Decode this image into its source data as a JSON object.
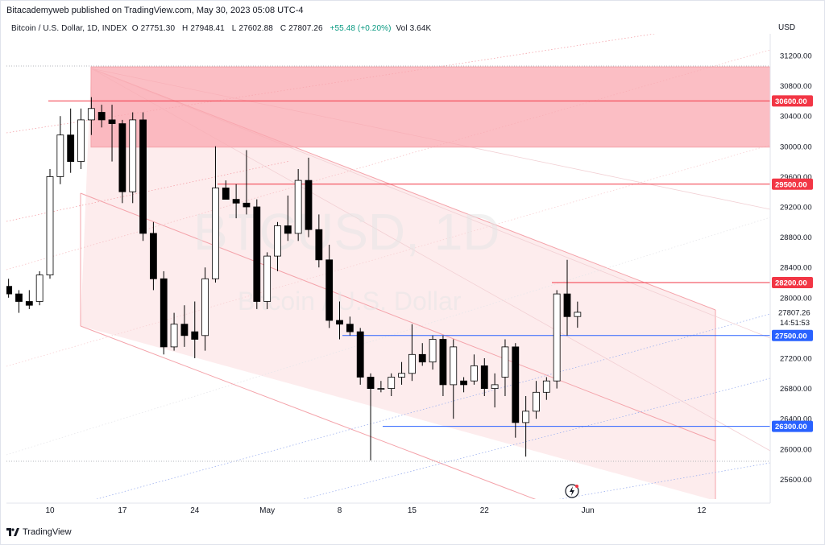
{
  "header": {
    "publisher_line": "Bitacademyweb published on TradingView.com, May 30, 2023 05:08 UTC-4",
    "symbol_name": "Bitcoin / U.S. Dollar, 1D, INDEX",
    "open_label": "O",
    "open_value": "27751.30",
    "high_label": "H",
    "high_value": "27948.41",
    "low_label": "L",
    "low_value": "27602.88",
    "close_label": "C",
    "close_value": "27807.26",
    "change_value": "+55.48 (+0.20%)",
    "volume_label": "Vol",
    "volume_value": "3.64K",
    "currency": "USD"
  },
  "footer": {
    "brand": "TradingView"
  },
  "watermark": {
    "line1": "BTCUSD, 1D",
    "line2": "Bitcoin / U.S. Dollar"
  },
  "chart_data": {
    "type": "candlestick",
    "title": "Bitcoin / U.S. Dollar, 1D, INDEX",
    "ylabel": "USD",
    "ylim": [
      25200,
      31500
    ],
    "y_ticks": [
      "31200.00",
      "30800.00",
      "30400.00",
      "30000.00",
      "29600.00",
      "29200.00",
      "28800.00",
      "28400.00",
      "28000.00",
      "27200.00",
      "26800.00",
      "26400.00",
      "26000.00",
      "25600.00"
    ],
    "x_ticks": [
      "10",
      "17",
      "24",
      "May",
      "8",
      "15",
      "22",
      "Jun",
      "12"
    ],
    "x_tick_days": [
      10,
      17,
      24,
      31,
      38,
      45,
      52,
      62,
      73
    ],
    "last_price_label": "27807.26",
    "countdown_label": "14:51:53",
    "candles": [
      {
        "d": 6,
        "o": 28150,
        "h": 28250,
        "l": 28000,
        "c": 28050
      },
      {
        "d": 7,
        "o": 28050,
        "h": 28100,
        "l": 27800,
        "c": 27950
      },
      {
        "d": 8,
        "o": 27950,
        "h": 28100,
        "l": 27850,
        "c": 27900
      },
      {
        "d": 9,
        "o": 27950,
        "h": 28350,
        "l": 27900,
        "c": 28300
      },
      {
        "d": 10,
        "o": 28300,
        "h": 29700,
        "l": 28250,
        "c": 29600
      },
      {
        "d": 11,
        "o": 29600,
        "h": 30400,
        "l": 29500,
        "c": 30150
      },
      {
        "d": 12,
        "o": 30150,
        "h": 30500,
        "l": 29650,
        "c": 29800
      },
      {
        "d": 13,
        "o": 29800,
        "h": 30500,
        "l": 29700,
        "c": 30350
      },
      {
        "d": 14,
        "o": 30350,
        "h": 30650,
        "l": 30150,
        "c": 30500
      },
      {
        "d": 15,
        "o": 30450,
        "h": 30550,
        "l": 30250,
        "c": 30350
      },
      {
        "d": 16,
        "o": 30350,
        "h": 30550,
        "l": 29800,
        "c": 30300
      },
      {
        "d": 17,
        "o": 30300,
        "h": 30350,
        "l": 29250,
        "c": 29400
      },
      {
        "d": 18,
        "o": 29400,
        "h": 30450,
        "l": 29250,
        "c": 30350
      },
      {
        "d": 19,
        "o": 30350,
        "h": 30450,
        "l": 28750,
        "c": 28850
      },
      {
        "d": 20,
        "o": 28850,
        "h": 29000,
        "l": 28100,
        "c": 28250
      },
      {
        "d": 21,
        "o": 28250,
        "h": 28350,
        "l": 27250,
        "c": 27350
      },
      {
        "d": 22,
        "o": 27350,
        "h": 27800,
        "l": 27300,
        "c": 27650
      },
      {
        "d": 23,
        "o": 27650,
        "h": 27900,
        "l": 27350,
        "c": 27500
      },
      {
        "d": 24,
        "o": 27550,
        "h": 27950,
        "l": 27200,
        "c": 27450
      },
      {
        "d": 25,
        "o": 27500,
        "h": 28400,
        "l": 27300,
        "c": 28250
      },
      {
        "d": 26,
        "o": 28250,
        "h": 30000,
        "l": 28200,
        "c": 29450
      },
      {
        "d": 27,
        "o": 29450,
        "h": 29550,
        "l": 29300,
        "c": 29300
      },
      {
        "d": 28,
        "o": 29300,
        "h": 29500,
        "l": 29050,
        "c": 29250
      },
      {
        "d": 29,
        "o": 29250,
        "h": 29950,
        "l": 29100,
        "c": 29200
      },
      {
        "d": 30,
        "o": 29200,
        "h": 29300,
        "l": 27850,
        "c": 27950
      },
      {
        "d": 31,
        "o": 27950,
        "h": 28600,
        "l": 27850,
        "c": 28550
      },
      {
        "d": 32,
        "o": 28550,
        "h": 29000,
        "l": 28350,
        "c": 28950
      },
      {
        "d": 33,
        "o": 28950,
        "h": 29350,
        "l": 28750,
        "c": 28850
      },
      {
        "d": 34,
        "o": 28850,
        "h": 29700,
        "l": 28750,
        "c": 29550
      },
      {
        "d": 35,
        "o": 29550,
        "h": 29850,
        "l": 28800,
        "c": 28900
      },
      {
        "d": 36,
        "o": 28900,
        "h": 29100,
        "l": 28400,
        "c": 28500
      },
      {
        "d": 37,
        "o": 28500,
        "h": 28700,
        "l": 27600,
        "c": 27700
      },
      {
        "d": 38,
        "o": 27700,
        "h": 27950,
        "l": 27450,
        "c": 27650
      },
      {
        "d": 39,
        "o": 27650,
        "h": 27750,
        "l": 27500,
        "c": 27550
      },
      {
        "d": 40,
        "o": 27550,
        "h": 27600,
        "l": 26850,
        "c": 26950
      },
      {
        "d": 41,
        "o": 26950,
        "h": 27000,
        "l": 25850,
        "c": 26800
      },
      {
        "d": 42,
        "o": 26800,
        "h": 26900,
        "l": 26750,
        "c": 26800
      },
      {
        "d": 43,
        "o": 26800,
        "h": 27000,
        "l": 26700,
        "c": 26950
      },
      {
        "d": 44,
        "o": 26950,
        "h": 27150,
        "l": 26850,
        "c": 27000
      },
      {
        "d": 45,
        "o": 27000,
        "h": 27650,
        "l": 26900,
        "c": 27250
      },
      {
        "d": 46,
        "o": 27250,
        "h": 27400,
        "l": 27100,
        "c": 27150
      },
      {
        "d": 47,
        "o": 27150,
        "h": 27500,
        "l": 27050,
        "c": 27450
      },
      {
        "d": 48,
        "o": 27450,
        "h": 27500,
        "l": 26700,
        "c": 26850
      },
      {
        "d": 49,
        "o": 26850,
        "h": 27450,
        "l": 26400,
        "c": 27350
      },
      {
        "d": 50,
        "o": 26900,
        "h": 26950,
        "l": 26750,
        "c": 26850
      },
      {
        "d": 51,
        "o": 26900,
        "h": 27250,
        "l": 26850,
        "c": 27100
      },
      {
        "d": 52,
        "o": 27100,
        "h": 27200,
        "l": 26700,
        "c": 26800
      },
      {
        "d": 53,
        "o": 26800,
        "h": 27000,
        "l": 26550,
        "c": 26850
      },
      {
        "d": 54,
        "o": 26950,
        "h": 27450,
        "l": 26700,
        "c": 27350
      },
      {
        "d": 55,
        "o": 27350,
        "h": 27400,
        "l": 26150,
        "c": 26350
      },
      {
        "d": 56,
        "o": 26350,
        "h": 26700,
        "l": 25900,
        "c": 26500
      },
      {
        "d": 57,
        "o": 26500,
        "h": 26900,
        "l": 26400,
        "c": 26750
      },
      {
        "d": 58,
        "o": 26750,
        "h": 26950,
        "l": 26650,
        "c": 26900
      },
      {
        "d": 59,
        "o": 26900,
        "h": 28100,
        "l": 26800,
        "c": 28050
      },
      {
        "d": 60,
        "o": 28050,
        "h": 28500,
        "l": 27500,
        "c": 27750
      },
      {
        "d": 61,
        "o": 27751.3,
        "h": 27948.41,
        "l": 27602.88,
        "c": 27807.26
      }
    ],
    "horizontal_levels": [
      {
        "price": 30600,
        "label": "30600.00",
        "color": "#f23645"
      },
      {
        "price": 29500,
        "label": "29500.00",
        "color": "#f23645"
      },
      {
        "price": 28200,
        "label": "28200.00",
        "color": "#f23645"
      },
      {
        "price": 27500,
        "label": "27500.00",
        "color": "#2962ff"
      },
      {
        "price": 26300,
        "label": "26300.00",
        "color": "#2962ff"
      }
    ],
    "supply_zone": {
      "price_top": 31050,
      "price_bottom": 29990,
      "color": "#f23645"
    },
    "grid": false,
    "colors": {
      "up_candle_fill": "#ffffff",
      "down_candle_fill": "#000000",
      "candle_outline": "#000000",
      "red_level": "#f23645",
      "blue_level": "#2962ff",
      "channel_fill": "#f8c8cc",
      "zone_fill": "#f9a8b0"
    }
  }
}
